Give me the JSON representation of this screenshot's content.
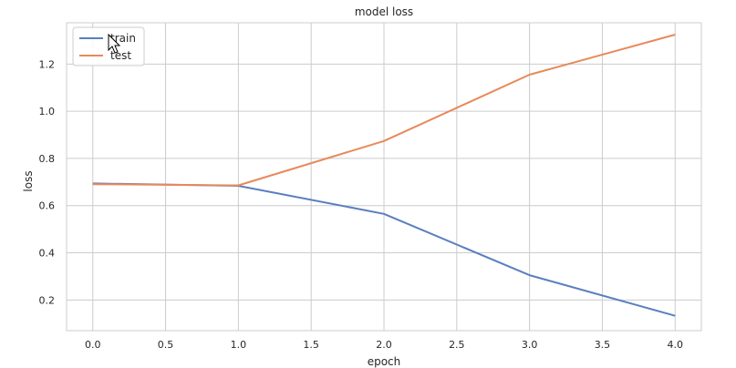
{
  "chart_data": {
    "type": "line",
    "title": "model loss",
    "xlabel": "epoch",
    "ylabel": "loss",
    "xlim": [
      -0.18,
      4.18
    ],
    "ylim": [
      0.07,
      1.375
    ],
    "xticks": [
      0.0,
      0.5,
      1.0,
      1.5,
      2.0,
      2.5,
      3.0,
      3.5,
      4.0
    ],
    "xtick_labels": [
      "0.0",
      "0.5",
      "1.0",
      "1.5",
      "2.0",
      "2.5",
      "3.0",
      "3.5",
      "4.0"
    ],
    "yticks": [
      0.2,
      0.4,
      0.6,
      0.8,
      1.0,
      1.2
    ],
    "ytick_labels": [
      "0.2",
      "0.4",
      "0.6",
      "0.8",
      "1.0",
      "1.2"
    ],
    "grid": true,
    "legend_position": "top-left",
    "x": [
      0,
      1,
      2,
      3,
      4
    ],
    "series": [
      {
        "name": "train",
        "color": "#5a7fbf",
        "values": [
          0.694,
          0.684,
          0.565,
          0.305,
          0.133
        ]
      },
      {
        "name": "test",
        "color": "#e8895a",
        "values": [
          0.691,
          0.686,
          0.874,
          1.155,
          1.325
        ]
      }
    ]
  },
  "colors": {
    "grid": "#cccccc",
    "frame": "#cccccc",
    "text": "#262626",
    "background": "#ffffff"
  },
  "cursor": {
    "icon": "mouse-pointer-icon"
  }
}
